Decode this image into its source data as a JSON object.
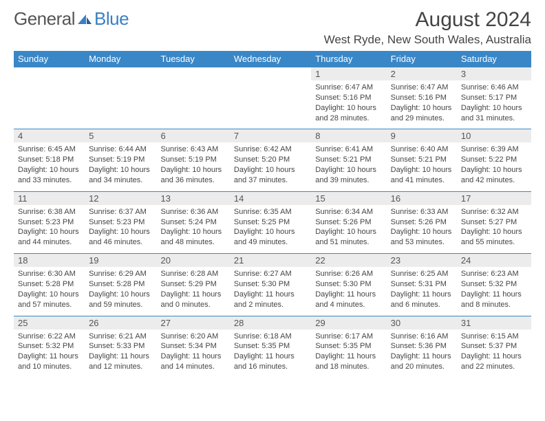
{
  "brand": {
    "part1": "General",
    "part2": "Blue"
  },
  "title": "August 2024",
  "location": "West Ryde, New South Wales, Australia",
  "colors": {
    "header_bg": "#3a87c7",
    "daynum_bg": "#ececec",
    "text": "#444444"
  },
  "day_names": [
    "Sunday",
    "Monday",
    "Tuesday",
    "Wednesday",
    "Thursday",
    "Friday",
    "Saturday"
  ],
  "weeks": [
    [
      null,
      null,
      null,
      null,
      {
        "n": "1",
        "sr": "6:47 AM",
        "ss": "5:16 PM",
        "dl": "10 hours and 28 minutes."
      },
      {
        "n": "2",
        "sr": "6:47 AM",
        "ss": "5:16 PM",
        "dl": "10 hours and 29 minutes."
      },
      {
        "n": "3",
        "sr": "6:46 AM",
        "ss": "5:17 PM",
        "dl": "10 hours and 31 minutes."
      }
    ],
    [
      {
        "n": "4",
        "sr": "6:45 AM",
        "ss": "5:18 PM",
        "dl": "10 hours and 33 minutes."
      },
      {
        "n": "5",
        "sr": "6:44 AM",
        "ss": "5:19 PM",
        "dl": "10 hours and 34 minutes."
      },
      {
        "n": "6",
        "sr": "6:43 AM",
        "ss": "5:19 PM",
        "dl": "10 hours and 36 minutes."
      },
      {
        "n": "7",
        "sr": "6:42 AM",
        "ss": "5:20 PM",
        "dl": "10 hours and 37 minutes."
      },
      {
        "n": "8",
        "sr": "6:41 AM",
        "ss": "5:21 PM",
        "dl": "10 hours and 39 minutes."
      },
      {
        "n": "9",
        "sr": "6:40 AM",
        "ss": "5:21 PM",
        "dl": "10 hours and 41 minutes."
      },
      {
        "n": "10",
        "sr": "6:39 AM",
        "ss": "5:22 PM",
        "dl": "10 hours and 42 minutes."
      }
    ],
    [
      {
        "n": "11",
        "sr": "6:38 AM",
        "ss": "5:23 PM",
        "dl": "10 hours and 44 minutes."
      },
      {
        "n": "12",
        "sr": "6:37 AM",
        "ss": "5:23 PM",
        "dl": "10 hours and 46 minutes."
      },
      {
        "n": "13",
        "sr": "6:36 AM",
        "ss": "5:24 PM",
        "dl": "10 hours and 48 minutes."
      },
      {
        "n": "14",
        "sr": "6:35 AM",
        "ss": "5:25 PM",
        "dl": "10 hours and 49 minutes."
      },
      {
        "n": "15",
        "sr": "6:34 AM",
        "ss": "5:26 PM",
        "dl": "10 hours and 51 minutes."
      },
      {
        "n": "16",
        "sr": "6:33 AM",
        "ss": "5:26 PM",
        "dl": "10 hours and 53 minutes."
      },
      {
        "n": "17",
        "sr": "6:32 AM",
        "ss": "5:27 PM",
        "dl": "10 hours and 55 minutes."
      }
    ],
    [
      {
        "n": "18",
        "sr": "6:30 AM",
        "ss": "5:28 PM",
        "dl": "10 hours and 57 minutes."
      },
      {
        "n": "19",
        "sr": "6:29 AM",
        "ss": "5:28 PM",
        "dl": "10 hours and 59 minutes."
      },
      {
        "n": "20",
        "sr": "6:28 AM",
        "ss": "5:29 PM",
        "dl": "11 hours and 0 minutes."
      },
      {
        "n": "21",
        "sr": "6:27 AM",
        "ss": "5:30 PM",
        "dl": "11 hours and 2 minutes."
      },
      {
        "n": "22",
        "sr": "6:26 AM",
        "ss": "5:30 PM",
        "dl": "11 hours and 4 minutes."
      },
      {
        "n": "23",
        "sr": "6:25 AM",
        "ss": "5:31 PM",
        "dl": "11 hours and 6 minutes."
      },
      {
        "n": "24",
        "sr": "6:23 AM",
        "ss": "5:32 PM",
        "dl": "11 hours and 8 minutes."
      }
    ],
    [
      {
        "n": "25",
        "sr": "6:22 AM",
        "ss": "5:32 PM",
        "dl": "11 hours and 10 minutes."
      },
      {
        "n": "26",
        "sr": "6:21 AM",
        "ss": "5:33 PM",
        "dl": "11 hours and 12 minutes."
      },
      {
        "n": "27",
        "sr": "6:20 AM",
        "ss": "5:34 PM",
        "dl": "11 hours and 14 minutes."
      },
      {
        "n": "28",
        "sr": "6:18 AM",
        "ss": "5:35 PM",
        "dl": "11 hours and 16 minutes."
      },
      {
        "n": "29",
        "sr": "6:17 AM",
        "ss": "5:35 PM",
        "dl": "11 hours and 18 minutes."
      },
      {
        "n": "30",
        "sr": "6:16 AM",
        "ss": "5:36 PM",
        "dl": "11 hours and 20 minutes."
      },
      {
        "n": "31",
        "sr": "6:15 AM",
        "ss": "5:37 PM",
        "dl": "11 hours and 22 minutes."
      }
    ]
  ],
  "labels": {
    "sunrise": "Sunrise:",
    "sunset": "Sunset:",
    "daylight": "Daylight:"
  }
}
